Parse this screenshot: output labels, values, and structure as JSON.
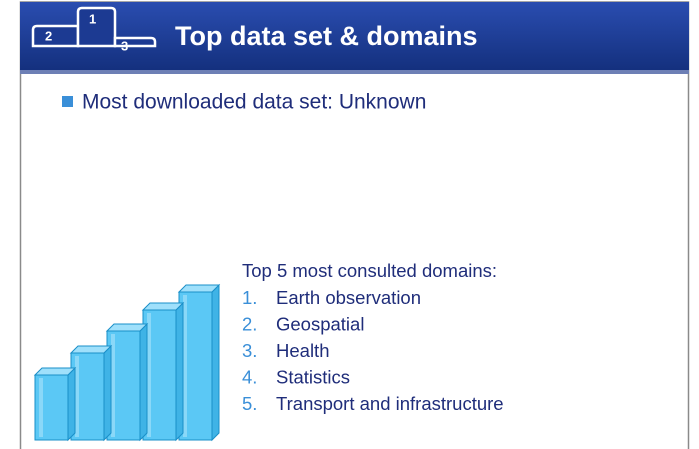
{
  "header": {
    "title": "Top data set & domains",
    "podium": {
      "first": "1",
      "second": "2",
      "third": "3"
    }
  },
  "bullet": "Most downloaded data set: Unknown",
  "domains": {
    "heading": "Top 5 most consulted domains:",
    "items": [
      {
        "number": "1.",
        "label": "Earth observation"
      },
      {
        "number": "2.",
        "label": "Geospatial"
      },
      {
        "number": "3.",
        "label": "Health"
      },
      {
        "number": "4.",
        "label": "Statistics"
      },
      {
        "number": "5.",
        "label": "Transport and infrastructure"
      }
    ]
  }
}
